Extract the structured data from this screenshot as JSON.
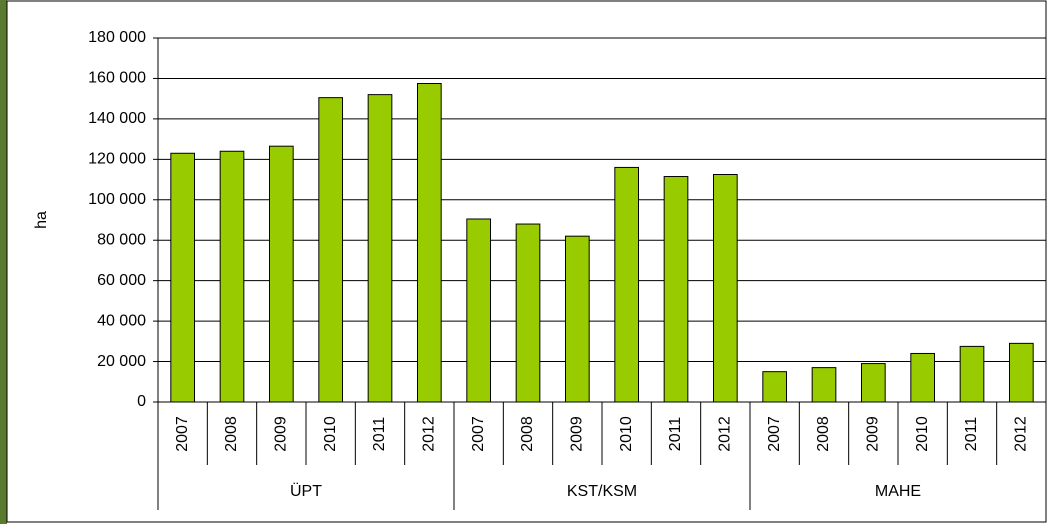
{
  "chart_data": {
    "type": "bar",
    "y_label": "ha",
    "color": "#99cc00",
    "ylim": [
      0,
      180000
    ],
    "yticks": [
      {
        "value": 0,
        "label": "0"
      },
      {
        "value": 20000,
        "label": "20 000"
      },
      {
        "value": 40000,
        "label": "40 000"
      },
      {
        "value": 60000,
        "label": "60 000"
      },
      {
        "value": 80000,
        "label": "80 000"
      },
      {
        "value": 100000,
        "label": "100 000"
      },
      {
        "value": 120000,
        "label": "120 000"
      },
      {
        "value": 140000,
        "label": "140 000"
      },
      {
        "value": 160000,
        "label": "160 000"
      },
      {
        "value": 180000,
        "label": "180 000"
      }
    ],
    "grid": true,
    "groups": [
      {
        "label": "ÜPT",
        "categories": [
          "2007",
          "2008",
          "2009",
          "2010",
          "2011",
          "2012"
        ],
        "values": [
          123000,
          124000,
          126500,
          150500,
          152000,
          157500
        ]
      },
      {
        "label": "KST/KSM",
        "categories": [
          "2007",
          "2008",
          "2009",
          "2010",
          "2011",
          "2012"
        ],
        "values": [
          90500,
          88000,
          82000,
          116000,
          111500,
          112500
        ]
      },
      {
        "label": "MAHE",
        "categories": [
          "2007",
          "2008",
          "2009",
          "2010",
          "2011",
          "2012"
        ],
        "values": [
          15000,
          17000,
          19000,
          24000,
          27500,
          29000
        ]
      }
    ]
  }
}
